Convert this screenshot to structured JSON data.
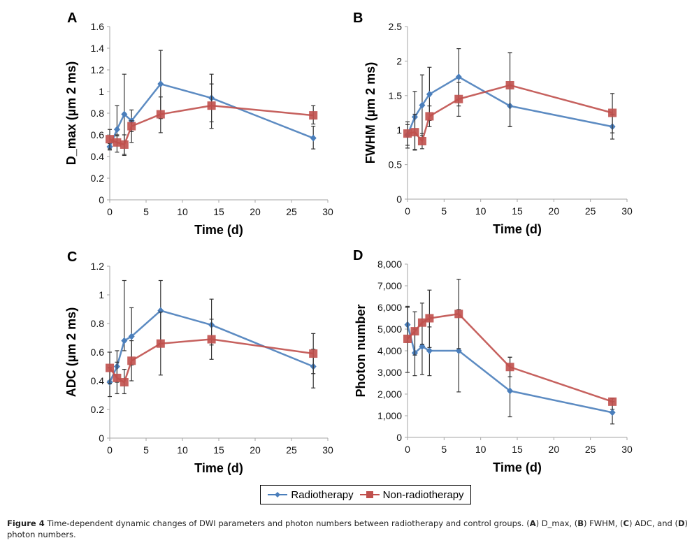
{
  "chart_data": [
    {
      "type": "line",
      "panel": "A",
      "title": "",
      "xlabel": "Time (d)",
      "ylabel": "D_max (µm 2 ms)",
      "x": [
        0,
        1,
        2,
        3,
        7,
        14,
        28
      ],
      "xlim": [
        0,
        30
      ],
      "xticks": [
        0,
        5,
        10,
        15,
        20,
        25,
        30
      ],
      "xtick_labels": [
        "0",
        "5",
        "10",
        "15",
        "20",
        "25",
        "30"
      ],
      "ylim": [
        0,
        1.6
      ],
      "yticks": [
        0,
        0.2,
        0.4,
        0.6,
        0.8,
        1.0,
        1.2,
        1.4,
        1.6
      ],
      "ytick_labels": [
        "0",
        "0.2",
        "0.4",
        "0.6",
        "0.8",
        "1",
        "1.2",
        "1.4",
        "1.6"
      ],
      "grid": false,
      "series": [
        {
          "name": "Radiotherapy",
          "values": [
            0.49,
            0.65,
            0.79,
            0.73,
            1.07,
            0.94,
            0.57
          ],
          "err_low": [
            0.46,
            0.59,
            0.42,
            0.63,
            0.75,
            0.72,
            0.47
          ],
          "err_high": [
            0.52,
            0.87,
            1.16,
            0.83,
            1.38,
            1.16,
            0.68
          ]
        },
        {
          "name": "Non-radiotherapy",
          "values": [
            0.56,
            0.53,
            0.51,
            0.68,
            0.79,
            0.87,
            0.78
          ],
          "err_low": [
            0.47,
            0.44,
            0.41,
            0.53,
            0.62,
            0.66,
            0.7
          ],
          "err_high": [
            0.65,
            0.6,
            0.6,
            0.73,
            0.95,
            1.07,
            0.87
          ]
        }
      ]
    },
    {
      "type": "line",
      "panel": "B",
      "title": "",
      "xlabel": "Time (d)",
      "ylabel": "FWHM (µm 2 ms)",
      "x": [
        0,
        1,
        2,
        3,
        7,
        14,
        28
      ],
      "xlim": [
        0,
        30
      ],
      "xticks": [
        0,
        5,
        10,
        15,
        20,
        25,
        30
      ],
      "xtick_labels": [
        "0",
        "5",
        "10",
        "15",
        "20",
        "25",
        "30"
      ],
      "ylim": [
        0,
        2.5
      ],
      "yticks": [
        0,
        0.5,
        1.0,
        1.5,
        2.0,
        2.5
      ],
      "ytick_labels": [
        "0",
        "0.5",
        "1",
        "1.5",
        "2",
        "2.5"
      ],
      "grid": false,
      "series": [
        {
          "name": "Radiotherapy",
          "values": [
            0.93,
            1.19,
            1.36,
            1.52,
            1.77,
            1.35,
            1.05
          ],
          "err_low": [
            0.78,
            0.72,
            0.92,
            1.14,
            1.35,
            1.05,
            0.87
          ],
          "err_high": [
            1.08,
            1.56,
            1.8,
            1.91,
            2.18,
            1.65,
            1.23
          ]
        },
        {
          "name": "Non-radiotherapy",
          "values": [
            0.95,
            0.97,
            0.84,
            1.2,
            1.45,
            1.65,
            1.25
          ],
          "err_low": [
            0.74,
            0.71,
            0.73,
            1.05,
            1.2,
            1.05,
            0.96
          ],
          "err_high": [
            1.12,
            1.23,
            0.95,
            1.35,
            1.69,
            2.12,
            1.53
          ]
        }
      ]
    },
    {
      "type": "line",
      "panel": "C",
      "title": "",
      "xlabel": "Time (d)",
      "ylabel": "ADC (µm 2 ms)",
      "x": [
        0,
        1,
        2,
        3,
        7,
        14,
        28
      ],
      "xlim": [
        0,
        30
      ],
      "xticks": [
        0,
        5,
        10,
        15,
        20,
        25,
        30
      ],
      "xtick_labels": [
        "0",
        "5",
        "10",
        "15",
        "20",
        "25",
        "30"
      ],
      "ylim": [
        0,
        1.2
      ],
      "yticks": [
        0,
        0.2,
        0.4,
        0.6,
        0.8,
        1.0,
        1.2
      ],
      "ytick_labels": [
        "0",
        "0.2",
        "0.4",
        "0.6",
        "0.8",
        "1",
        "1.2"
      ],
      "grid": false,
      "series": [
        {
          "name": "Radiotherapy",
          "values": [
            0.39,
            0.5,
            0.68,
            0.71,
            0.89,
            0.79,
            0.5
          ],
          "err_low": [
            0.29,
            0.39,
            0.61,
            0.51,
            0.66,
            0.65,
            0.35
          ],
          "err_high": [
            0.49,
            0.61,
            1.1,
            0.91,
            1.1,
            0.97,
            0.62
          ]
        },
        {
          "name": "Non-radiotherapy",
          "values": [
            0.49,
            0.42,
            0.39,
            0.54,
            0.66,
            0.69,
            0.59
          ],
          "err_low": [
            0.38,
            0.31,
            0.31,
            0.4,
            0.44,
            0.55,
            0.45
          ],
          "err_high": [
            0.6,
            0.53,
            0.48,
            0.68,
            0.88,
            0.83,
            0.73
          ]
        }
      ]
    },
    {
      "type": "line",
      "panel": "D",
      "title": "",
      "xlabel": "Time (d)",
      "ylabel": "Photon number",
      "x": [
        0,
        1,
        2,
        3,
        7,
        14,
        28
      ],
      "xlim": [
        0,
        30
      ],
      "xticks": [
        0,
        5,
        10,
        15,
        20,
        25,
        30
      ],
      "xtick_labels": [
        "0",
        "5",
        "10",
        "15",
        "20",
        "25",
        "30"
      ],
      "ylim": [
        0,
        8000
      ],
      "yticks": [
        0,
        1000,
        2000,
        3000,
        4000,
        5000,
        6000,
        7000,
        8000
      ],
      "ytick_labels": [
        "0",
        "1,000",
        "2,000",
        "3,000",
        "4,000",
        "5,000",
        "6,000",
        "7,000",
        "8,000"
      ],
      "grid": false,
      "series": [
        {
          "name": "Radiotherapy",
          "values": [
            5200,
            3900,
            4200,
            4000,
            4000,
            2150,
            1150
          ],
          "err_low": [
            4400,
            2850,
            2900,
            2850,
            2100,
            950,
            620
          ],
          "err_high": [
            6000,
            5000,
            4300,
            5100,
            5900,
            3700,
            1650
          ]
        },
        {
          "name": "Non-radiotherapy",
          "values": [
            4550,
            4900,
            5300,
            5500,
            5700,
            3250,
            1650
          ],
          "err_low": [
            3000,
            3800,
            4300,
            4150,
            4100,
            2800,
            1300
          ],
          "err_high": [
            6050,
            5800,
            6200,
            6800,
            7300,
            3700,
            1800
          ]
        }
      ]
    }
  ],
  "legend": {
    "placement": "bottom-center",
    "items": [
      {
        "label": "Radiotherapy",
        "marker": "diamond",
        "color": "#4a7ebb"
      },
      {
        "label": "Non-radiotherapy",
        "marker": "square",
        "color": "#c0504d"
      }
    ]
  },
  "colors": {
    "radiotherapy": "#4a7ebb",
    "non_radiotherapy": "#c0504d",
    "error_bar": "#333333",
    "axis": "#a6a6a6"
  },
  "caption": {
    "label": "Figure 4",
    "text_1": " Time-dependent dynamic changes of DWI parameters and photon numbers between radiotherapy and control groups. (",
    "a": "A",
    "text_2": ") D_max, (",
    "b": "B",
    "text_3": ") FWHM, (",
    "c": "C",
    "text_4": ") ADC, and (",
    "d": "D",
    "text_5": ") photon numbers."
  }
}
